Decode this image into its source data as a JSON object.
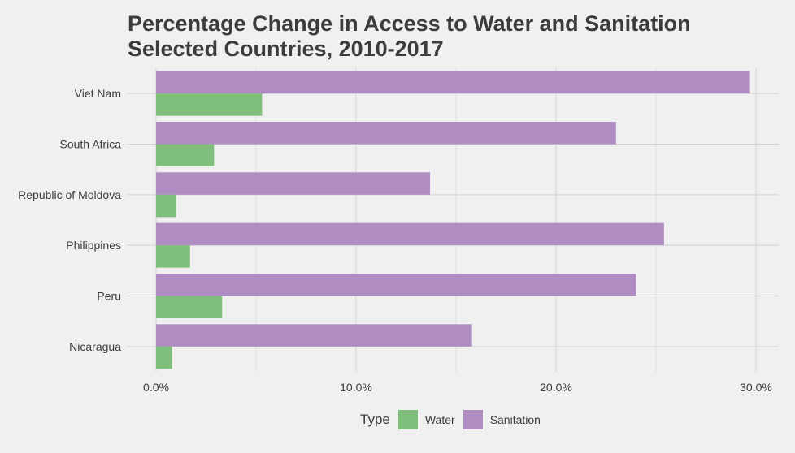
{
  "chart_data": {
    "type": "bar",
    "orientation": "horizontal",
    "title": "Percentage Change in Access to Water and Sanitation",
    "subtitle": "Selected Countries, 2010-2017",
    "xlabel": "",
    "ylabel": "",
    "categories": [
      "Nicaragua",
      "Peru",
      "Philippines",
      "Republic of Moldova",
      "South Africa",
      "Viet Nam"
    ],
    "series": [
      {
        "name": "Water",
        "color": "#7fbf7b",
        "values": [
          0.8,
          3.3,
          1.7,
          1.0,
          2.9,
          5.3
        ]
      },
      {
        "name": "Sanitation",
        "color": "#af8dc3",
        "values": [
          15.8,
          24.0,
          25.4,
          13.7,
          23.0,
          29.7
        ]
      }
    ],
    "xlim": [
      0,
      31
    ],
    "xticks": [
      0,
      10,
      20,
      30
    ],
    "xtick_labels": [
      "0.0%",
      "10.0%",
      "20.0%",
      "30.0%"
    ],
    "grid": true,
    "legend": {
      "title": "Type",
      "position": "bottom"
    }
  }
}
